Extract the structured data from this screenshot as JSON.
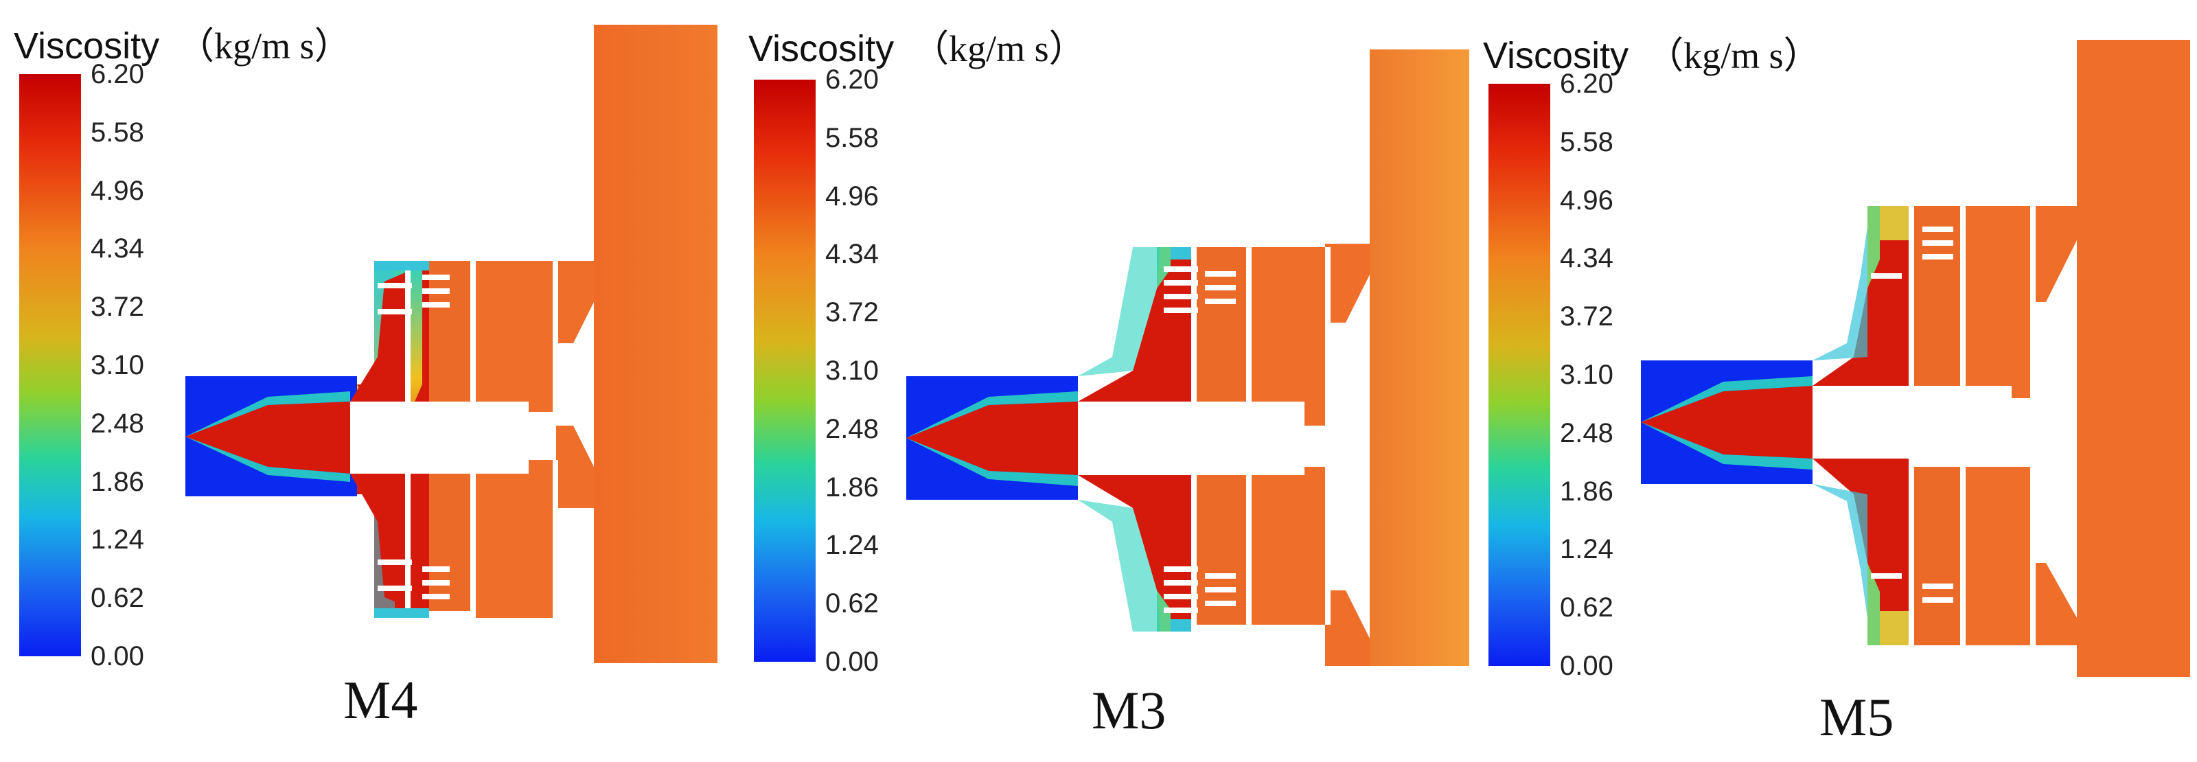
{
  "colorbar": {
    "title": "Viscosity",
    "unit": "（kg/m s）",
    "ticks": [
      "6.20",
      "5.58",
      "4.96",
      "4.34",
      "3.72",
      "3.10",
      "2.48",
      "1.86",
      "1.24",
      "0.62",
      "0.00"
    ],
    "colors": [
      "#c40000",
      "#e62b0b",
      "#f0831e",
      "#d8b41c",
      "#8fd12e",
      "#2ad39a",
      "#18b6e6",
      "#1b66f0",
      "#0a1ef2"
    ]
  },
  "panels": [
    {
      "label": "M4"
    },
    {
      "label": "M3"
    },
    {
      "label": "M5"
    }
  ],
  "colors": {
    "fluid_orange": "#ee6e2a",
    "outlet_orange": "#f08a32",
    "core_red": "#d51a0c",
    "inlet_blue": "#0a2af0"
  }
}
